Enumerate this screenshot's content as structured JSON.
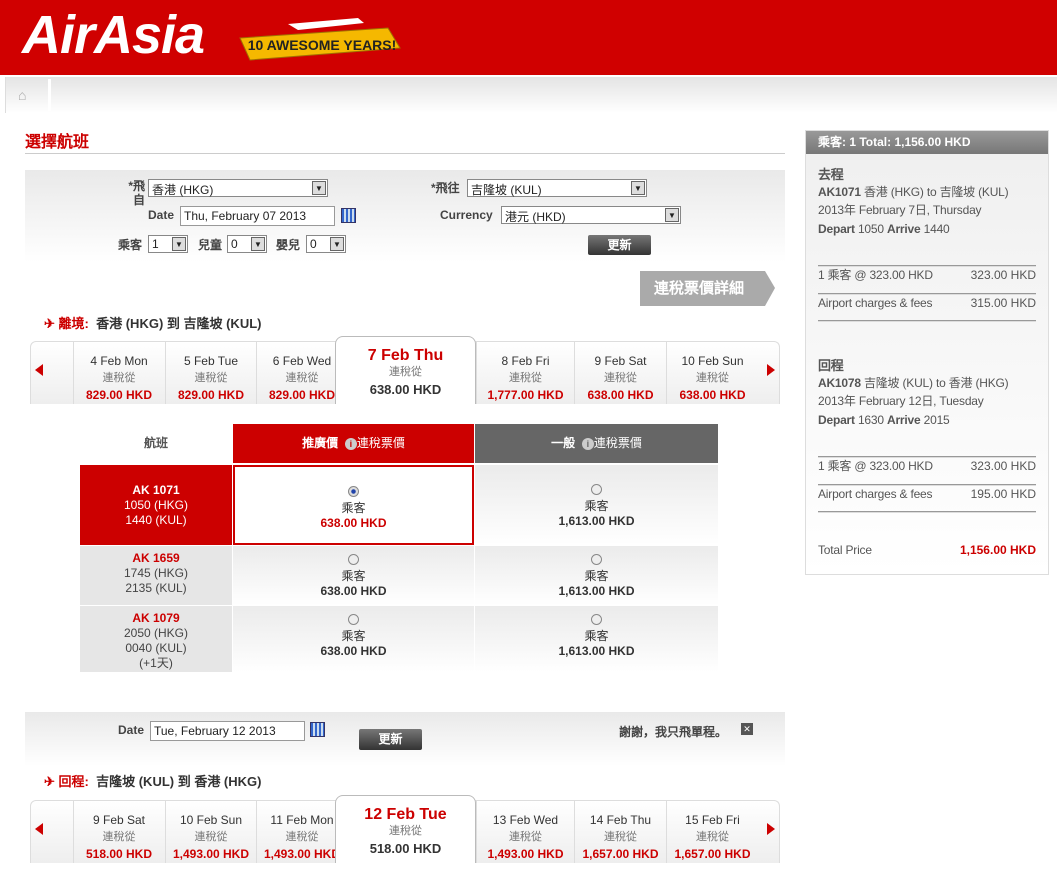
{
  "brand": {
    "logo": "AirAsia",
    "badge": "10 AWESOME YEARS!"
  },
  "breadcrumb": {
    "home_icon": "home-icon"
  },
  "page_title": "選擇航班",
  "search": {
    "from_label": "*飛自",
    "from_value": "香港 (HKG)",
    "to_label": "*飛往",
    "to_value": "吉隆坡 (KUL)",
    "date_label": "Date",
    "date_value": "Thu, February 07 2013",
    "currency_label": "Currency",
    "currency_value": "港元 (HKD)",
    "adult_label": "乘客",
    "adult_value": "1",
    "child_label": "兒童",
    "child_value": "0",
    "infant_label": "嬰兒",
    "infant_value": "0",
    "update_label": "更新"
  },
  "tax_details_button": "連稅票價詳細",
  "depart": {
    "label": "離境:",
    "route": "香港 (HKG)  到  吉隆坡 (KUL)",
    "days": [
      {
        "date": "4 Feb Mon",
        "sub": "連稅從",
        "price": "829.00 HKD"
      },
      {
        "date": "5 Feb Tue",
        "sub": "連稅從",
        "price": "829.00 HKD"
      },
      {
        "date": "6 Feb Wed",
        "sub": "連稅從",
        "price": "829.00 HKD"
      },
      {
        "date": "7 Feb Thu",
        "sub": "連稅從",
        "price": "638.00 HKD"
      },
      {
        "date": "8 Feb Fri",
        "sub": "連稅從",
        "price": "1,777.00 HKD"
      },
      {
        "date": "9 Feb Sat",
        "sub": "連稅從",
        "price": "638.00 HKD"
      },
      {
        "date": "10 Feb Sun",
        "sub": "連稅從",
        "price": "638.00 HKD"
      }
    ]
  },
  "fares": {
    "col_flight": "航班",
    "col_promo": "推廣價",
    "col_promo_info": "連稅票價",
    "col_regular": "一般",
    "col_regular_info": "連稅票價",
    "rows": [
      {
        "flight": "AK 1071",
        "dep": "1050 (HKG)",
        "arr": "1440 (KUL)",
        "extra": "",
        "promo_label": "乘客",
        "promo_price": "638.00 HKD",
        "reg_label": "乘客",
        "reg_price": "1,613.00 HKD",
        "selected": "promo"
      },
      {
        "flight": "AK 1659",
        "dep": "1745 (HKG)",
        "arr": "2135 (KUL)",
        "extra": "",
        "promo_label": "乘客",
        "promo_price": "638.00 HKD",
        "reg_label": "乘客",
        "reg_price": "1,613.00 HKD",
        "selected": ""
      },
      {
        "flight": "AK 1079",
        "dep": "2050 (HKG)",
        "arr": "0040 (KUL)",
        "extra": "(+1天)",
        "promo_label": "乘客",
        "promo_price": "638.00 HKD",
        "reg_label": "乘客",
        "reg_price": "1,613.00 HKD",
        "selected": ""
      }
    ]
  },
  "return_search": {
    "date_label": "Date",
    "date_value": "Tue, February 12 2013",
    "update_label": "更新",
    "one_way": "謝謝，我只飛單程。"
  },
  "return": {
    "label": "回程:",
    "route": "吉隆坡 (KUL)  到  香港 (HKG)",
    "days": [
      {
        "date": "9 Feb Sat",
        "sub": "連稅從",
        "price": "518.00 HKD"
      },
      {
        "date": "10 Feb Sun",
        "sub": "連稅從",
        "price": "1,493.00 HKD"
      },
      {
        "date": "11 Feb Mon",
        "sub": "連稅從",
        "price": "1,493.00 HKD"
      },
      {
        "date": "12 Feb Tue",
        "sub": "連稅從",
        "price": "518.00 HKD"
      },
      {
        "date": "13 Feb Wed",
        "sub": "連稅從",
        "price": "1,493.00 HKD"
      },
      {
        "date": "14 Feb Thu",
        "sub": "連稅從",
        "price": "1,657.00 HKD"
      },
      {
        "date": "15 Feb Fri",
        "sub": "連稅從",
        "price": "1,657.00 HKD"
      }
    ]
  },
  "summary": {
    "header": "乘客: 1  Total: 1,156.00 HKD",
    "out": {
      "title": "去程",
      "flight": "AK1071",
      "route": " 香港 (HKG) to 吉隆坡 (KUL)",
      "date": "2013年 February 7日, Thursday",
      "depart_label": "Depart",
      "depart": " 1050 ",
      "arrive_label": "Arrive",
      "arrive": " 1440",
      "fare_label": "1 乘客 @ 323.00 HKD",
      "fare": "323.00 HKD",
      "fees_label": "Airport charges & fees",
      "fees": "315.00 HKD"
    },
    "ret": {
      "title": "回程",
      "flight": "AK1078",
      "route": " 吉隆坡 (KUL) to 香港 (HKG)",
      "date": "2013年 February 12日, Tuesday",
      "depart_label": "Depart",
      "depart": " 1630 ",
      "arrive_label": "Arrive",
      "arrive": " 2015",
      "fare_label": "1 乘客 @ 323.00 HKD",
      "fare": "323.00 HKD",
      "fees_label": "Airport charges & fees",
      "fees": "195.00 HKD"
    },
    "total_label": "Total Price",
    "total": "1,156.00 HKD"
  },
  "colors": {
    "brand_red": "#cc0000",
    "selected_border": "#cc0000"
  }
}
